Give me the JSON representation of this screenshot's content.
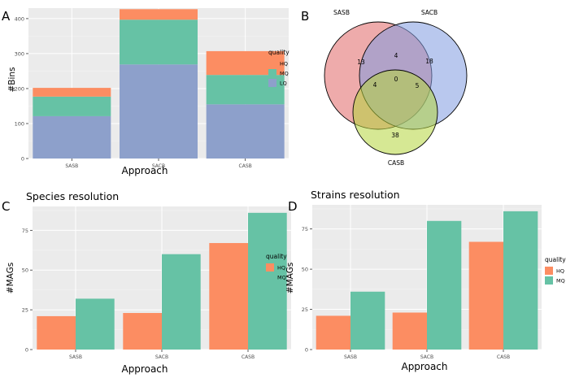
{
  "panels": {
    "A": {
      "label": "A"
    },
    "B": {
      "label": "B"
    },
    "C": {
      "label": "C",
      "title": "Species resolution"
    },
    "D": {
      "label": "D",
      "title": "Strains resolution"
    }
  },
  "colors": {
    "HQ": "#FC8D62",
    "MQ": "#66C2A5",
    "LQ": "#8DA0CB",
    "panel_bg": "#EBEBEB",
    "grid_major": "#FFFFFF",
    "grid_minor": "#F4F4F4",
    "venn_sasb": "#E06666",
    "venn_sacb": "#7F9BE0",
    "venn_casb": "#B5D63C"
  },
  "chart_data": [
    {
      "panel": "A",
      "type": "bar",
      "stacked": true,
      "categories": [
        "SASB",
        "SACB",
        "CASB"
      ],
      "series": [
        {
          "name": "LQ",
          "values": [
            121,
            269,
            155
          ]
        },
        {
          "name": "MQ",
          "values": [
            56,
            128,
            84
          ]
        },
        {
          "name": "HQ",
          "values": [
            25,
            30,
            68
          ]
        }
      ],
      "xlabel": "Approach",
      "ylabel": "#Bins",
      "ylim": [
        0,
        430
      ],
      "yticks": [
        0,
        100,
        200,
        300,
        400
      ],
      "legend": {
        "title": "quality",
        "entries": [
          "HQ",
          "MQ",
          "LQ"
        ],
        "position": "right"
      },
      "grid": true
    },
    {
      "panel": "B",
      "type": "venn",
      "sets": [
        "SASB",
        "SACB",
        "CASB"
      ],
      "regions": {
        "SASB_only": 13,
        "SACB_only": 18,
        "CASB_only": 38,
        "SASB_SACB": 4,
        "SASB_CASB": 4,
        "SACB_CASB": 5,
        "all": 0
      }
    },
    {
      "panel": "C",
      "type": "bar",
      "title": "Species resolution",
      "categories": [
        "SASB",
        "SACB",
        "CASB"
      ],
      "series": [
        {
          "name": "HQ",
          "values": [
            21,
            23,
            67
          ]
        },
        {
          "name": "MQ",
          "values": [
            32,
            60,
            86
          ]
        }
      ],
      "xlabel": "Approach",
      "ylabel": "#MAGs",
      "ylim": [
        0,
        90
      ],
      "yticks": [
        0,
        25,
        50,
        75
      ],
      "legend": {
        "title": "quality",
        "entries": [
          "HQ",
          "MQ"
        ],
        "position": "right"
      },
      "grid": true
    },
    {
      "panel": "D",
      "type": "bar",
      "title": "Strains resolution",
      "categories": [
        "SASB",
        "SACB",
        "CASB"
      ],
      "series": [
        {
          "name": "HQ",
          "values": [
            21,
            23,
            67
          ]
        },
        {
          "name": "MQ",
          "values": [
            36,
            80,
            86
          ]
        }
      ],
      "xlabel": "Approach",
      "ylabel": "#MAGs",
      "ylim": [
        0,
        90
      ],
      "yticks": [
        0,
        25,
        50,
        75
      ],
      "legend": {
        "title": "quality",
        "entries": [
          "HQ",
          "MQ"
        ],
        "position": "right"
      },
      "grid": true
    }
  ]
}
